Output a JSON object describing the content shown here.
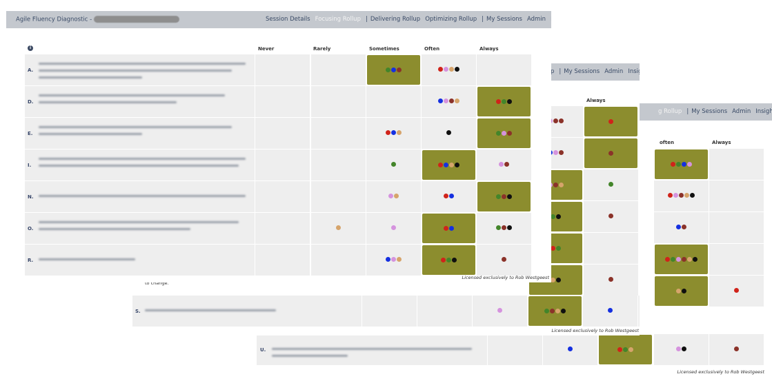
{
  "app": {
    "title": "Agile Fluency Diagnostic -",
    "nav": {
      "session_details": "Session Details",
      "focusing": "Focusing Rollup",
      "delivering": "Delivering Rollup",
      "optimizing": "Optimizing Rollup",
      "separator": "|",
      "my_sessions": "My Sessions",
      "admin": "Admin",
      "insights": "Insights",
      "logout_icon": "logout-icon",
      "tail_p": "p",
      "tail_g": "g Rollup"
    }
  },
  "columns": {
    "never": "Never",
    "rarely": "Rarely",
    "sometimes": "Sometimes",
    "often": "Often",
    "often_partial": "often",
    "always": "Always"
  },
  "license": "Licensed exclusively to Rob Westgeest",
  "fragment_text": "to change.",
  "colors": {
    "red": "#d0231a",
    "blue": "#1530e0",
    "pink": "#d593de",
    "brown": "#8b3229",
    "tan": "#d6a46b",
    "black": "#101010",
    "green": "#43852a",
    "highlight": "#8c8d2e"
  },
  "window1": {
    "rows": [
      {
        "letter": "A.",
        "highlight": 2,
        "cells": [
          [],
          [],
          [
            "green",
            "blue",
            "brown"
          ],
          [
            "red",
            "pink",
            "tan",
            "black"
          ],
          []
        ]
      },
      {
        "letter": "D.",
        "highlight": 4,
        "cells": [
          [],
          [],
          [],
          [
            "blue",
            "pink",
            "brown",
            "tan"
          ],
          [
            "red",
            "green",
            "black"
          ]
        ]
      },
      {
        "letter": "E.",
        "highlight": 4,
        "cells": [
          [],
          [],
          [
            "red",
            "blue",
            "tan"
          ],
          [
            "black"
          ],
          [
            "green",
            "pink",
            "brown"
          ]
        ]
      },
      {
        "letter": "I.",
        "highlight": 3,
        "cells": [
          [],
          [],
          [
            "green"
          ],
          [
            "red",
            "blue",
            "tan",
            "black"
          ],
          [
            "pink",
            "brown"
          ]
        ]
      },
      {
        "letter": "N.",
        "highlight": 4,
        "cells": [
          [],
          [],
          [
            "pink",
            "tan"
          ],
          [
            "red",
            "blue"
          ],
          [
            "green",
            "brown",
            "black"
          ]
        ]
      },
      {
        "letter": "O.",
        "highlight": 3,
        "cells": [
          [],
          [
            "tan"
          ],
          [
            "pink"
          ],
          [
            "red",
            "blue"
          ],
          [
            "green",
            "brown",
            "black"
          ]
        ]
      },
      {
        "letter": "R.",
        "highlight": 3,
        "cells": [
          [],
          [],
          [
            "blue",
            "pink",
            "tan"
          ],
          [
            "red",
            "green",
            "black"
          ],
          [
            "brown"
          ]
        ]
      }
    ]
  },
  "window2": {
    "rows": [
      {
        "highlight": 1,
        "cells": [
          [
            "pink",
            "brown",
            "brown"
          ],
          [
            "red"
          ]
        ]
      },
      {
        "highlight": 1,
        "cells": [
          [
            "blue",
            "pink",
            "brown"
          ],
          [
            "brown"
          ]
        ]
      },
      {
        "highlight": 0,
        "cells": [
          [
            "pink",
            "brown",
            "tan"
          ],
          [
            "green"
          ]
        ]
      },
      {
        "highlight": 0,
        "cells": [
          [
            "green",
            "black"
          ],
          [
            "brown"
          ]
        ]
      },
      {
        "highlight": 0,
        "cells": [
          [
            "red",
            "green"
          ],
          []
        ]
      },
      {
        "highlight": 0,
        "cells": [
          [
            "tan",
            "black"
          ],
          [
            "brown"
          ]
        ]
      }
    ],
    "s_row": {
      "letter": "S.",
      "highlight": 3,
      "cells": [
        [],
        [],
        [
          "pink"
        ],
        [
          "green",
          "brown",
          "tan",
          "black"
        ],
        [
          "blue"
        ],
        [
          "red"
        ]
      ]
    }
  },
  "window3": {
    "rows": [
      {
        "highlight": 0,
        "cells": [
          [
            "red",
            "green",
            "blue",
            "pink"
          ],
          []
        ]
      },
      {
        "highlight": -1,
        "cells": [
          [
            "red",
            "pink",
            "brown",
            "tan",
            "black"
          ],
          []
        ]
      },
      {
        "highlight": -1,
        "cells": [
          [
            "blue",
            "brown"
          ],
          []
        ]
      },
      {
        "highlight": 0,
        "cells": [
          [
            "red",
            "green",
            "pink",
            "brown",
            "tan",
            "black"
          ],
          []
        ]
      },
      {
        "highlight": 0,
        "cells": [
          [
            "tan",
            "black"
          ],
          [
            "red"
          ]
        ]
      }
    ],
    "u_row": {
      "letter": "U.",
      "highlight": 2,
      "cells": [
        [],
        [
          "blue"
        ],
        [
          "red",
          "green",
          "tan"
        ],
        [
          "pink",
          "black"
        ],
        [
          "brown"
        ]
      ]
    }
  }
}
